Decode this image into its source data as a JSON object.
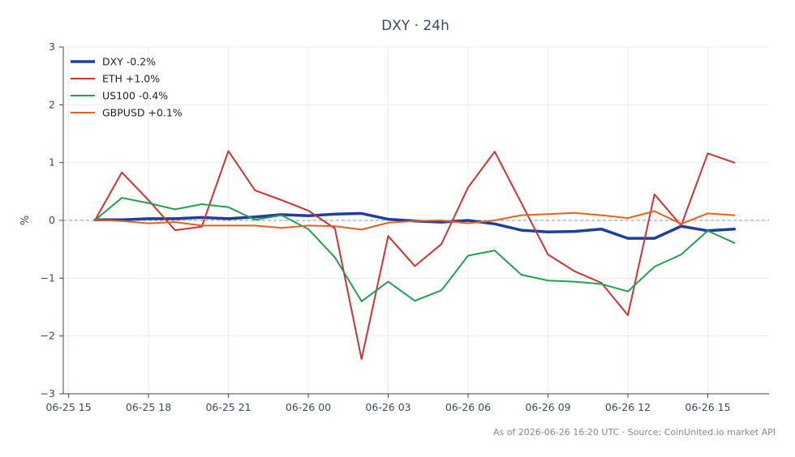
{
  "chart_data": {
    "type": "line",
    "title": "DXY · 24h",
    "xlabel": "",
    "ylabel": "%",
    "ylim": [
      -3,
      3
    ],
    "y_ticks": [
      3,
      2,
      1,
      0,
      -1,
      -2,
      -3
    ],
    "y_tick_labels": [
      "3",
      "2",
      "1",
      "0",
      "−1",
      "−2",
      "−3"
    ],
    "x_ticks": [
      0,
      3,
      6,
      9,
      12,
      15,
      18,
      21,
      24
    ],
    "x_tick_labels": [
      "06-25 15",
      "06-25 18",
      "06-25 21",
      "06-26 00",
      "06-26 03",
      "06-26 06",
      "06-26 09",
      "06-26 12",
      "06-26 15"
    ],
    "xlim": [
      -0.2,
      26.3
    ],
    "x": [
      1,
      2,
      3,
      4,
      5,
      6,
      7,
      8,
      9,
      10,
      11,
      12,
      13,
      14,
      15,
      16,
      17,
      18,
      19,
      20,
      21,
      22,
      23,
      24,
      25
    ],
    "grid": true,
    "legend_position": "top-left",
    "zero_line": true,
    "series": [
      {
        "name": "DXY -0.2%",
        "color": "#1f3e9e",
        "width": 3.5,
        "values": [
          0.01,
          0.01,
          0.03,
          0.03,
          0.05,
          0.03,
          0.06,
          0.1,
          0.08,
          0.11,
          0.12,
          0.02,
          -0.01,
          -0.03,
          0.0,
          -0.06,
          -0.17,
          -0.2,
          -0.19,
          -0.15,
          -0.31,
          -0.31,
          -0.1,
          -0.18,
          -0.15
        ]
      },
      {
        "name": "ETH +1.0%",
        "color": "#d03232",
        "width": 2,
        "values": [
          0.01,
          0.83,
          0.35,
          -0.17,
          -0.11,
          1.2,
          0.52,
          0.35,
          0.17,
          -0.14,
          -2.4,
          -0.27,
          -0.79,
          -0.41,
          0.57,
          1.19,
          0.3,
          -0.59,
          -0.88,
          -1.08,
          -1.64,
          0.45,
          -0.09,
          1.16,
          1.0
        ]
      },
      {
        "name": "US100 -0.4%",
        "color": "#22a04b",
        "width": 2,
        "values": [
          0.01,
          0.39,
          0.3,
          0.19,
          0.28,
          0.23,
          0.01,
          0.09,
          -0.15,
          -0.64,
          -1.4,
          -1.06,
          -1.39,
          -1.21,
          -0.61,
          -0.52,
          -0.94,
          -1.04,
          -1.06,
          -1.1,
          -1.23,
          -0.8,
          -0.59,
          -0.18,
          -0.39
        ]
      },
      {
        "name": "GBPUSD +0.1%",
        "color": "#e0621c",
        "width": 2,
        "values": [
          0.01,
          -0.01,
          -0.05,
          -0.03,
          -0.09,
          -0.09,
          -0.09,
          -0.13,
          -0.09,
          -0.1,
          -0.16,
          -0.04,
          -0.01,
          0.0,
          -0.05,
          0.0,
          0.09,
          0.11,
          0.13,
          0.09,
          0.04,
          0.16,
          -0.06,
          0.12,
          0.09
        ]
      }
    ],
    "source_note": "As of 2026-06-26 16:20 UTC · Source: CoinUnited.io market API"
  }
}
